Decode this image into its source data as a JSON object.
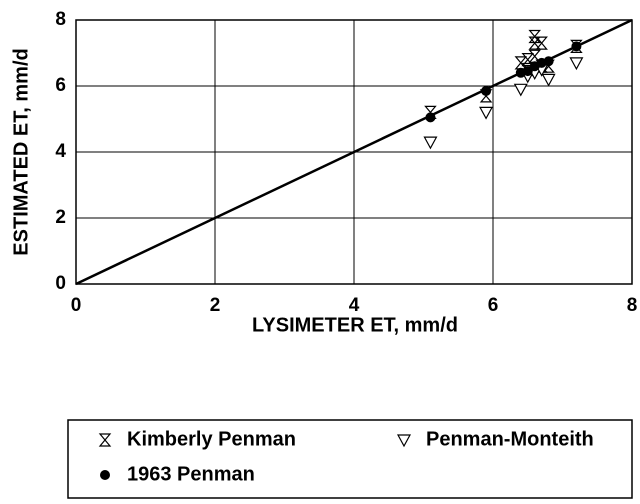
{
  "chart_data": {
    "type": "scatter",
    "xlabel": "LYSIMETER ET, mm/d",
    "ylabel": "ESTIMATED ET, mm/d",
    "xlim": [
      0,
      8
    ],
    "ylim": [
      0,
      8
    ],
    "xticks": [
      0,
      2,
      4,
      6,
      8
    ],
    "yticks": [
      0,
      2,
      4,
      6,
      8
    ],
    "grid": true,
    "legend": "bottom",
    "series": [
      {
        "name": "Kimberly Penman",
        "color": "#000000",
        "marker": "hourglass",
        "x": [
          5.1,
          5.9,
          6.4,
          6.5,
          6.6,
          6.6,
          6.7,
          6.6,
          6.8,
          6.5,
          6.7,
          7.2
        ],
        "values": [
          5.2,
          5.7,
          6.7,
          6.8,
          7.5,
          7.3,
          7.3,
          6.9,
          6.6,
          6.5,
          6.6,
          7.2
        ]
      },
      {
        "name": "Penman-Monteith",
        "color": "#000000",
        "marker": "triangle-down",
        "x": [
          5.1,
          5.9,
          6.4,
          6.5,
          6.6,
          6.8,
          7.2,
          6.7
        ],
        "values": [
          4.3,
          5.2,
          5.9,
          6.3,
          6.4,
          6.2,
          6.7,
          6.5
        ]
      },
      {
        "name": "1963 Penman",
        "color": "#000000",
        "marker": "circle",
        "x": [
          5.1,
          5.9,
          6.4,
          6.5,
          6.6,
          6.7,
          6.8,
          7.2
        ],
        "values": [
          5.05,
          5.85,
          6.4,
          6.45,
          6.6,
          6.7,
          6.75,
          7.2
        ]
      }
    ]
  }
}
